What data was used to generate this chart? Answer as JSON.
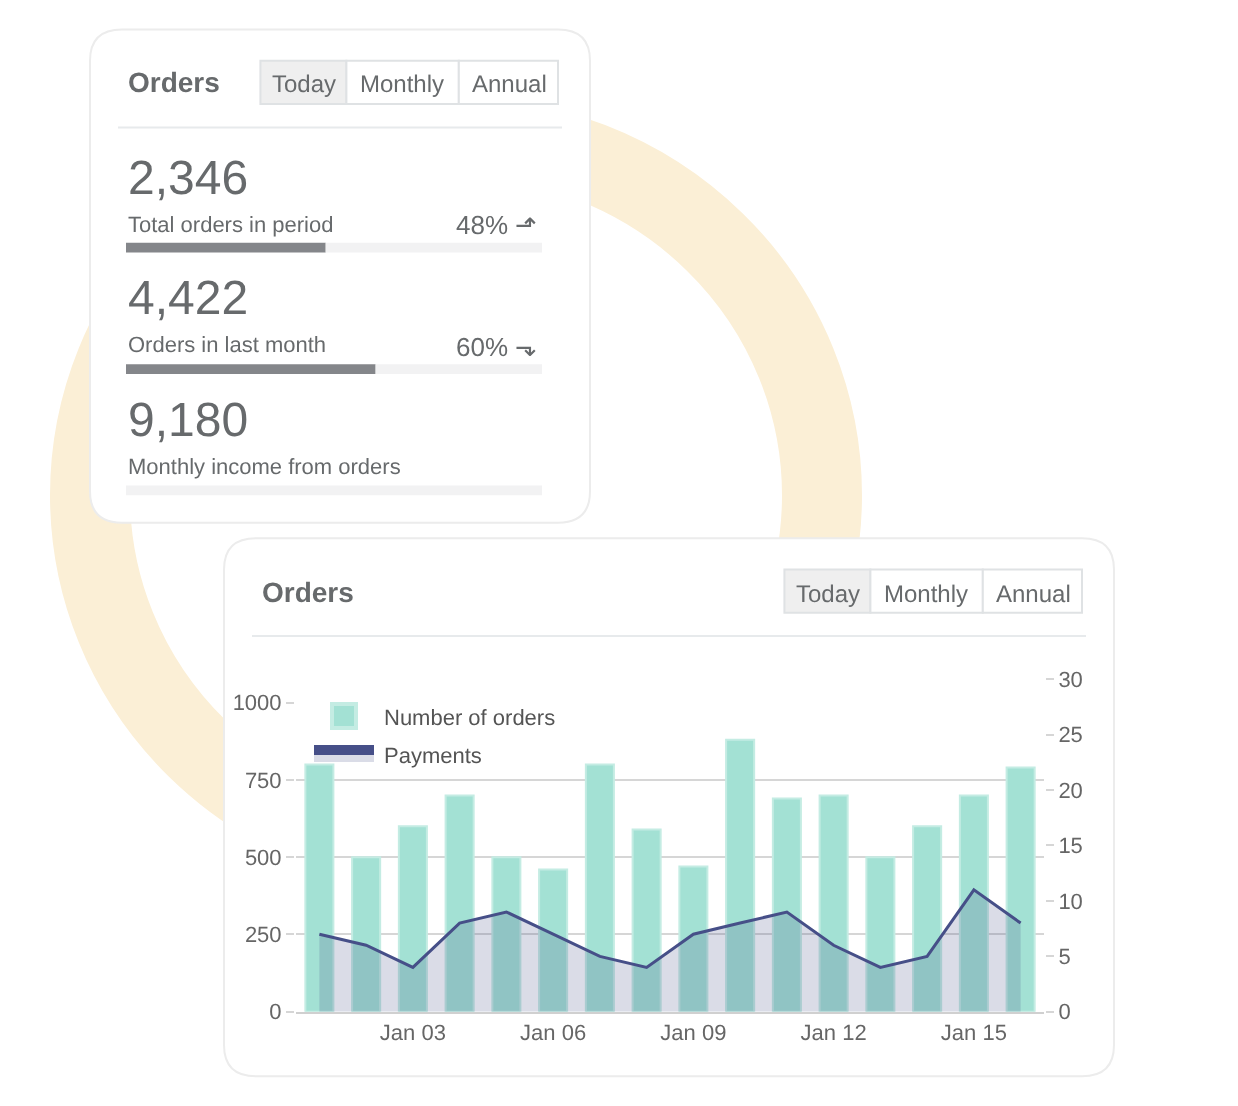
{
  "chart_data": [
    {
      "type": "other",
      "title": "Orders",
      "annotations": [
        "Today",
        "Monthly",
        "Annual"
      ],
      "categories": [
        "Total orders in period",
        "Orders in last month",
        "Monthly income from orders"
      ],
      "totals": [
        "2,346",
        "4,422",
        "9,180"
      ],
      "values": [
        48,
        60,
        null
      ],
      "value_labels": [
        "48% ⬏",
        "60% ⬎",
        null
      ]
    },
    {
      "type": "bar",
      "title": "Orders",
      "annotations": [
        "Today",
        "Monthly",
        "Annual"
      ],
      "categories": [
        null,
        null,
        "Jan 03",
        null,
        null,
        "Jan 06",
        null,
        null,
        "Jan 09",
        null,
        null,
        "Jan 12",
        null,
        null,
        "Jan 15",
        null
      ],
      "series": [
        {
          "name": "Number of orders",
          "color": "#a3e1d4",
          "values": [
            800,
            500,
            600,
            700,
            500,
            460,
            800,
            590,
            470,
            880,
            690,
            700,
            500,
            600,
            700,
            790
          ]
        },
        {
          "name": "Payments",
          "type": "area",
          "axis": "y2",
          "color": "#464f88",
          "values": [
            7,
            6,
            4,
            8,
            9,
            7,
            5,
            4,
            7,
            8,
            9,
            6,
            4,
            5,
            11,
            8
          ]
        }
      ],
      "ylim": [
        0,
        1000
      ],
      "yticks": [
        0,
        250,
        500,
        750,
        1000
      ],
      "y2lim": [
        0,
        30
      ],
      "y2ticks": [
        0,
        5,
        10,
        15,
        20,
        25,
        30
      ],
      "grid": "y",
      "legend": "top left"
    }
  ]
}
